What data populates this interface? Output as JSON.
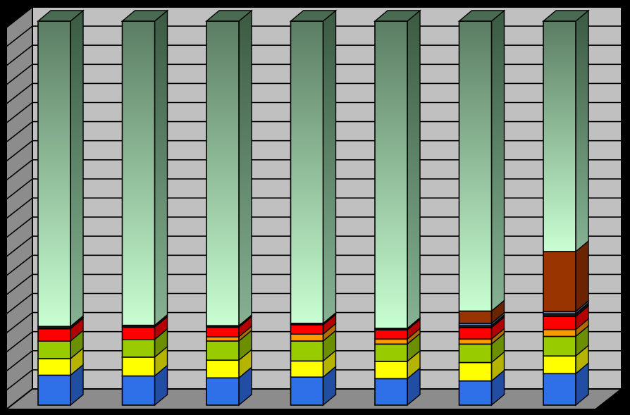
{
  "chart_data": {
    "type": "bar",
    "stacked": true,
    "percent_stacked": true,
    "style": "3d-column",
    "grid": true,
    "legend": "none",
    "title": "",
    "xlabel": "",
    "ylabel": "",
    "ylim": [
      0,
      100
    ],
    "y_gridline_count": 20,
    "categories": [
      "",
      "",
      "",
      "",
      "",
      "",
      ""
    ],
    "series": [
      {
        "color": "#2f6fe8",
        "values": [
          7.8,
          7.6,
          7.1,
          7.3,
          6.9,
          6.3,
          8.2
        ]
      },
      {
        "color": "#ffff00",
        "values": [
          4.3,
          4.9,
          4.6,
          4.2,
          4.5,
          4.8,
          4.6
        ]
      },
      {
        "color": "#99cc00",
        "values": [
          4.6,
          4.6,
          5.0,
          5.2,
          4.5,
          4.8,
          5.1
        ]
      },
      {
        "color": "#ff9900",
        "values": [
          0.0,
          0.0,
          1.1,
          1.8,
          1.3,
          1.3,
          1.8
        ]
      },
      {
        "color": "#ff0000",
        "values": [
          3.2,
          3.2,
          2.5,
          2.4,
          2.4,
          3.0,
          3.4
        ]
      },
      {
        "color": "#1a1a1a",
        "values": [
          0.6,
          0.5,
          0.4,
          0.4,
          0.4,
          0.5,
          0.7
        ]
      },
      {
        "color": "#4f81bd",
        "values": [
          0.0,
          0.0,
          0.0,
          0.0,
          0.0,
          0.6,
          0.6
        ]
      },
      {
        "color": "#993300",
        "values": [
          0.0,
          0.0,
          0.0,
          0.0,
          0.0,
          3.2,
          15.6
        ]
      },
      {
        "color": "#c8ffd2",
        "values": [
          79.5,
          79.2,
          79.3,
          78.7,
          80.0,
          75.5,
          60.0
        ]
      }
    ]
  }
}
